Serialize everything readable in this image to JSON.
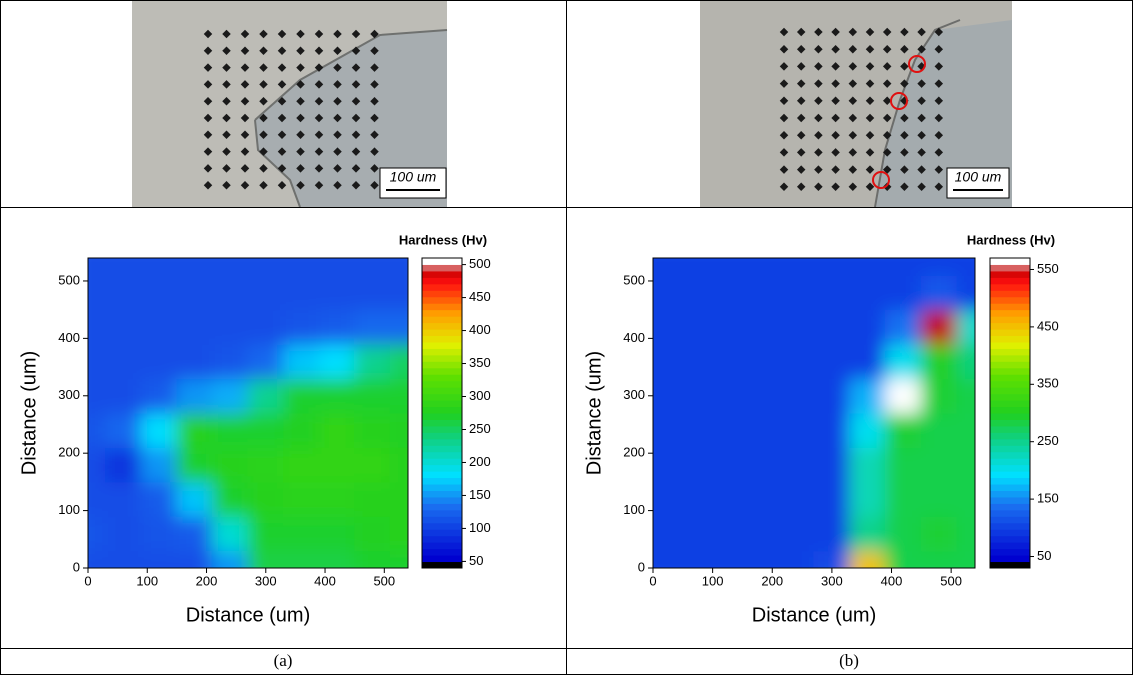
{
  "panels": [
    {
      "label": "(a)",
      "scale_bar": "100 um",
      "chart_data": {
        "type": "contour",
        "xlabel": "Distance (um)",
        "ylabel": "Distance (um)",
        "x": [
          0,
          60,
          120,
          180,
          240,
          300,
          360,
          420,
          480,
          540
        ],
        "y": [
          0,
          60,
          120,
          180,
          240,
          300,
          360,
          420,
          480,
          540
        ],
        "z": [
          [
            110,
            110,
            110,
            110,
            150,
            260,
            260,
            260,
            270,
            270
          ],
          [
            115,
            110,
            115,
            120,
            200,
            270,
            270,
            270,
            275,
            280
          ],
          [
            110,
            110,
            120,
            170,
            270,
            280,
            285,
            285,
            280,
            280
          ],
          [
            110,
            90,
            150,
            270,
            280,
            285,
            290,
            290,
            290,
            280
          ],
          [
            115,
            130,
            180,
            280,
            270,
            270,
            275,
            290,
            280,
            275
          ],
          [
            110,
            110,
            120,
            150,
            160,
            230,
            270,
            270,
            270,
            270
          ],
          [
            110,
            110,
            110,
            110,
            115,
            130,
            170,
            180,
            230,
            250
          ],
          [
            110,
            110,
            110,
            110,
            110,
            110,
            115,
            120,
            130,
            130
          ],
          [
            110,
            110,
            110,
            110,
            110,
            110,
            110,
            110,
            110,
            110
          ],
          [
            110,
            110,
            110,
            110,
            110,
            110,
            110,
            110,
            110,
            110
          ]
        ],
        "xlim": [
          0,
          540
        ],
        "ylim": [
          0,
          540
        ],
        "xticks": [
          0,
          100,
          200,
          300,
          400,
          500
        ],
        "yticks": [
          0,
          100,
          200,
          300,
          400,
          500
        ],
        "colorbar_title": "Hardness (Hv)",
        "colorbar_lim": [
          40,
          510
        ],
        "colorbar_ticks": [
          50,
          100,
          150,
          200,
          250,
          300,
          350,
          400,
          450,
          500
        ]
      }
    },
    {
      "label": "(b)",
      "scale_bar": "100 um",
      "chart_data": {
        "type": "contour",
        "xlabel": "Distance (um)",
        "ylabel": "Distance (um)",
        "x": [
          0,
          60,
          120,
          180,
          240,
          300,
          360,
          420,
          480,
          540
        ],
        "y": [
          0,
          60,
          120,
          180,
          240,
          300,
          360,
          420,
          480,
          540
        ],
        "z": [
          [
            100,
            100,
            100,
            100,
            100,
            110,
            450,
            280,
            280,
            280
          ],
          [
            100,
            100,
            100,
            100,
            100,
            100,
            250,
            280,
            290,
            280
          ],
          [
            100,
            100,
            100,
            100,
            100,
            100,
            230,
            280,
            280,
            280
          ],
          [
            100,
            100,
            100,
            100,
            100,
            100,
            230,
            280,
            280,
            280
          ],
          [
            100,
            100,
            100,
            100,
            100,
            100,
            200,
            290,
            280,
            280
          ],
          [
            100,
            100,
            100,
            100,
            100,
            100,
            170,
            560,
            290,
            280
          ],
          [
            100,
            100,
            100,
            100,
            100,
            100,
            100,
            200,
            300,
            260
          ],
          [
            100,
            100,
            100,
            100,
            100,
            100,
            100,
            140,
            550,
            220
          ],
          [
            100,
            100,
            100,
            100,
            100,
            100,
            100,
            100,
            120,
            100
          ],
          [
            100,
            100,
            100,
            100,
            100,
            100,
            100,
            100,
            100,
            100
          ]
        ],
        "xlim": [
          0,
          540
        ],
        "ylim": [
          0,
          540
        ],
        "xticks": [
          0,
          100,
          200,
          300,
          400,
          500
        ],
        "yticks": [
          0,
          100,
          200,
          300,
          400,
          500
        ],
        "colorbar_title": "Hardness (Hv)",
        "colorbar_lim": [
          30,
          570
        ],
        "colorbar_ticks": [
          50,
          150,
          250,
          350,
          450,
          550
        ]
      }
    }
  ]
}
